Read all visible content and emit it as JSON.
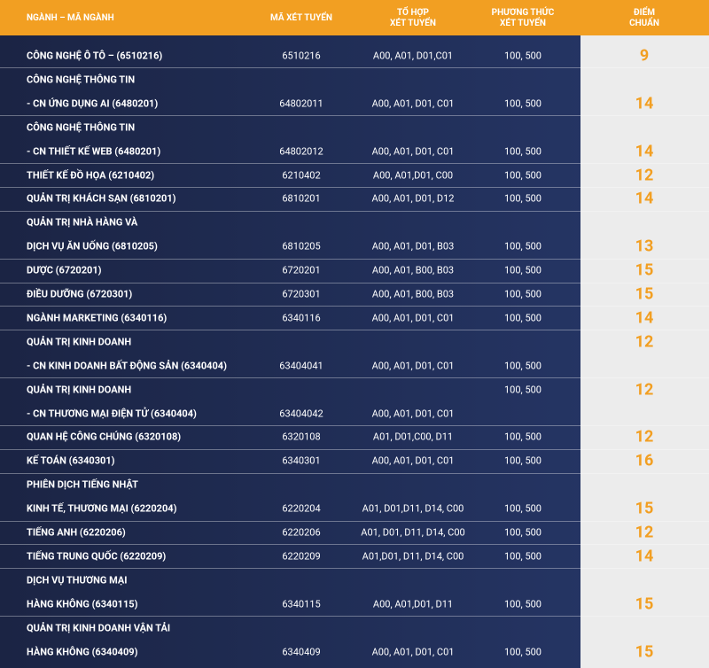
{
  "header": [
    "NGÀNH – MÃ NGÀNH",
    "MÃ XÉT TUYỂN",
    "TỔ HỢP\nXÉT TUYỂN",
    "PHƯƠNG THỨC\nXÉT TUYỂN",
    "ĐIỂM\nCHUẨN"
  ],
  "groups": [
    [
      [
        "CÔNG NGHỆ Ô TÔ – (6510216)",
        "6510216",
        "A00, A01, D01,C01",
        "100, 500",
        9
      ]
    ],
    [
      [
        "CÔNG NGHỆ THÔNG TIN",
        null,
        null,
        null,
        null
      ],
      [
        "- CN ỨNG DỤNG AI  (6480201)",
        "64802011",
        "A00, A01, D01, C01",
        "100, 500",
        14
      ]
    ],
    [
      [
        "CÔNG NGHỆ THÔNG TIN",
        null,
        null,
        null,
        null
      ],
      [
        "- CN THIẾT KẾ WEB  (6480201)",
        "64802012",
        "A00, A01, D01, C01",
        "100, 500",
        14
      ]
    ],
    [
      [
        "THIẾT KẾ ĐỒ HỌA (6210402)",
        "6210402",
        "A00, A01,D01, C00",
        "100, 500",
        12
      ]
    ],
    [
      [
        "QUẢN TRỊ KHÁCH SẠN (6810201)",
        "6810201",
        "A00, A01, D01, D12",
        "100, 500",
        14
      ]
    ],
    [
      [
        "QUẢN TRỊ NHÀ HÀNG VÀ",
        null,
        null,
        null,
        null
      ],
      [
        "DỊCH VỤ ĂN UỐNG (6810205)",
        "6810205",
        "A00, A01, D01, B03",
        "100, 500",
        13
      ]
    ],
    [
      [
        "DƯỢC (6720201)",
        "6720201",
        "A00, A01, B00, B03",
        "100, 500",
        15
      ]
    ],
    [
      [
        "ĐIỀU DƯỠNG (6720301)",
        "6720301",
        "A00, A01, B00, B03",
        "100, 500",
        15
      ]
    ],
    [
      [
        "NGÀNH MARKETING (6340116)",
        "6340116",
        "A00, A01, D01, C01",
        "100, 500",
        14
      ]
    ],
    [
      [
        "QUẢN TRỊ KINH DOANH",
        null,
        null,
        null,
        12
      ],
      [
        "- CN KINH DOANH BẤT ĐỘNG SẢN (6340404)",
        "63404041",
        "A00, A01, D01, C01",
        "100, 500",
        null
      ]
    ],
    [
      [
        "QUẢN TRỊ KINH DOANH",
        null,
        null,
        "100, 500",
        12
      ],
      [
        "-  CN THƯƠNG MẠI ĐIỆN TỬ (6340404)",
        "63404042",
        "A00, A01, D01, C01",
        null,
        null
      ]
    ],
    [
      [
        "QUAN HỆ CÔNG CHÚNG (6320108)",
        "6320108",
        "A01, D01,C00, D11",
        "100, 500",
        12
      ]
    ],
    [
      [
        "KẾ TOÁN (6340301)",
        "6340301",
        "A00, A01, D01, C01",
        "100, 500",
        16
      ]
    ],
    [
      [
        "PHIÊN DỊCH TIẾNG NHẬT",
        null,
        null,
        null,
        null
      ],
      [
        "KINH TẾ, THƯƠNG MẠI (6220204)",
        "6220204",
        "A01, D01,D11, D14, C00",
        "100, 500",
        15
      ]
    ],
    [
      [
        "TIẾNG ANH (6220206)",
        "6220206",
        "A01, D01, D11, D14, C00",
        "100, 500",
        12
      ]
    ],
    [
      [
        "TIẾNG TRUNG QUỐC (6220209)",
        "6220209",
        "A01,D01, D11, D14, C00",
        "100, 500",
        14
      ]
    ],
    [
      [
        "DỊCH VỤ THƯƠNG MẠI",
        null,
        null,
        null,
        null
      ],
      [
        "HÀNG KHÔNG (6340115)",
        "6340115",
        "A00, A01,D01, D11",
        "100, 500",
        15
      ]
    ],
    [
      [
        "QUẢN TRỊ KINH DOANH VẬN TẢI",
        null,
        null,
        null,
        null
      ],
      [
        "HÀNG KHÔNG (6340409)",
        "6340409",
        "A00, A01, D01, C01",
        "100, 500",
        15
      ]
    ]
  ]
}
